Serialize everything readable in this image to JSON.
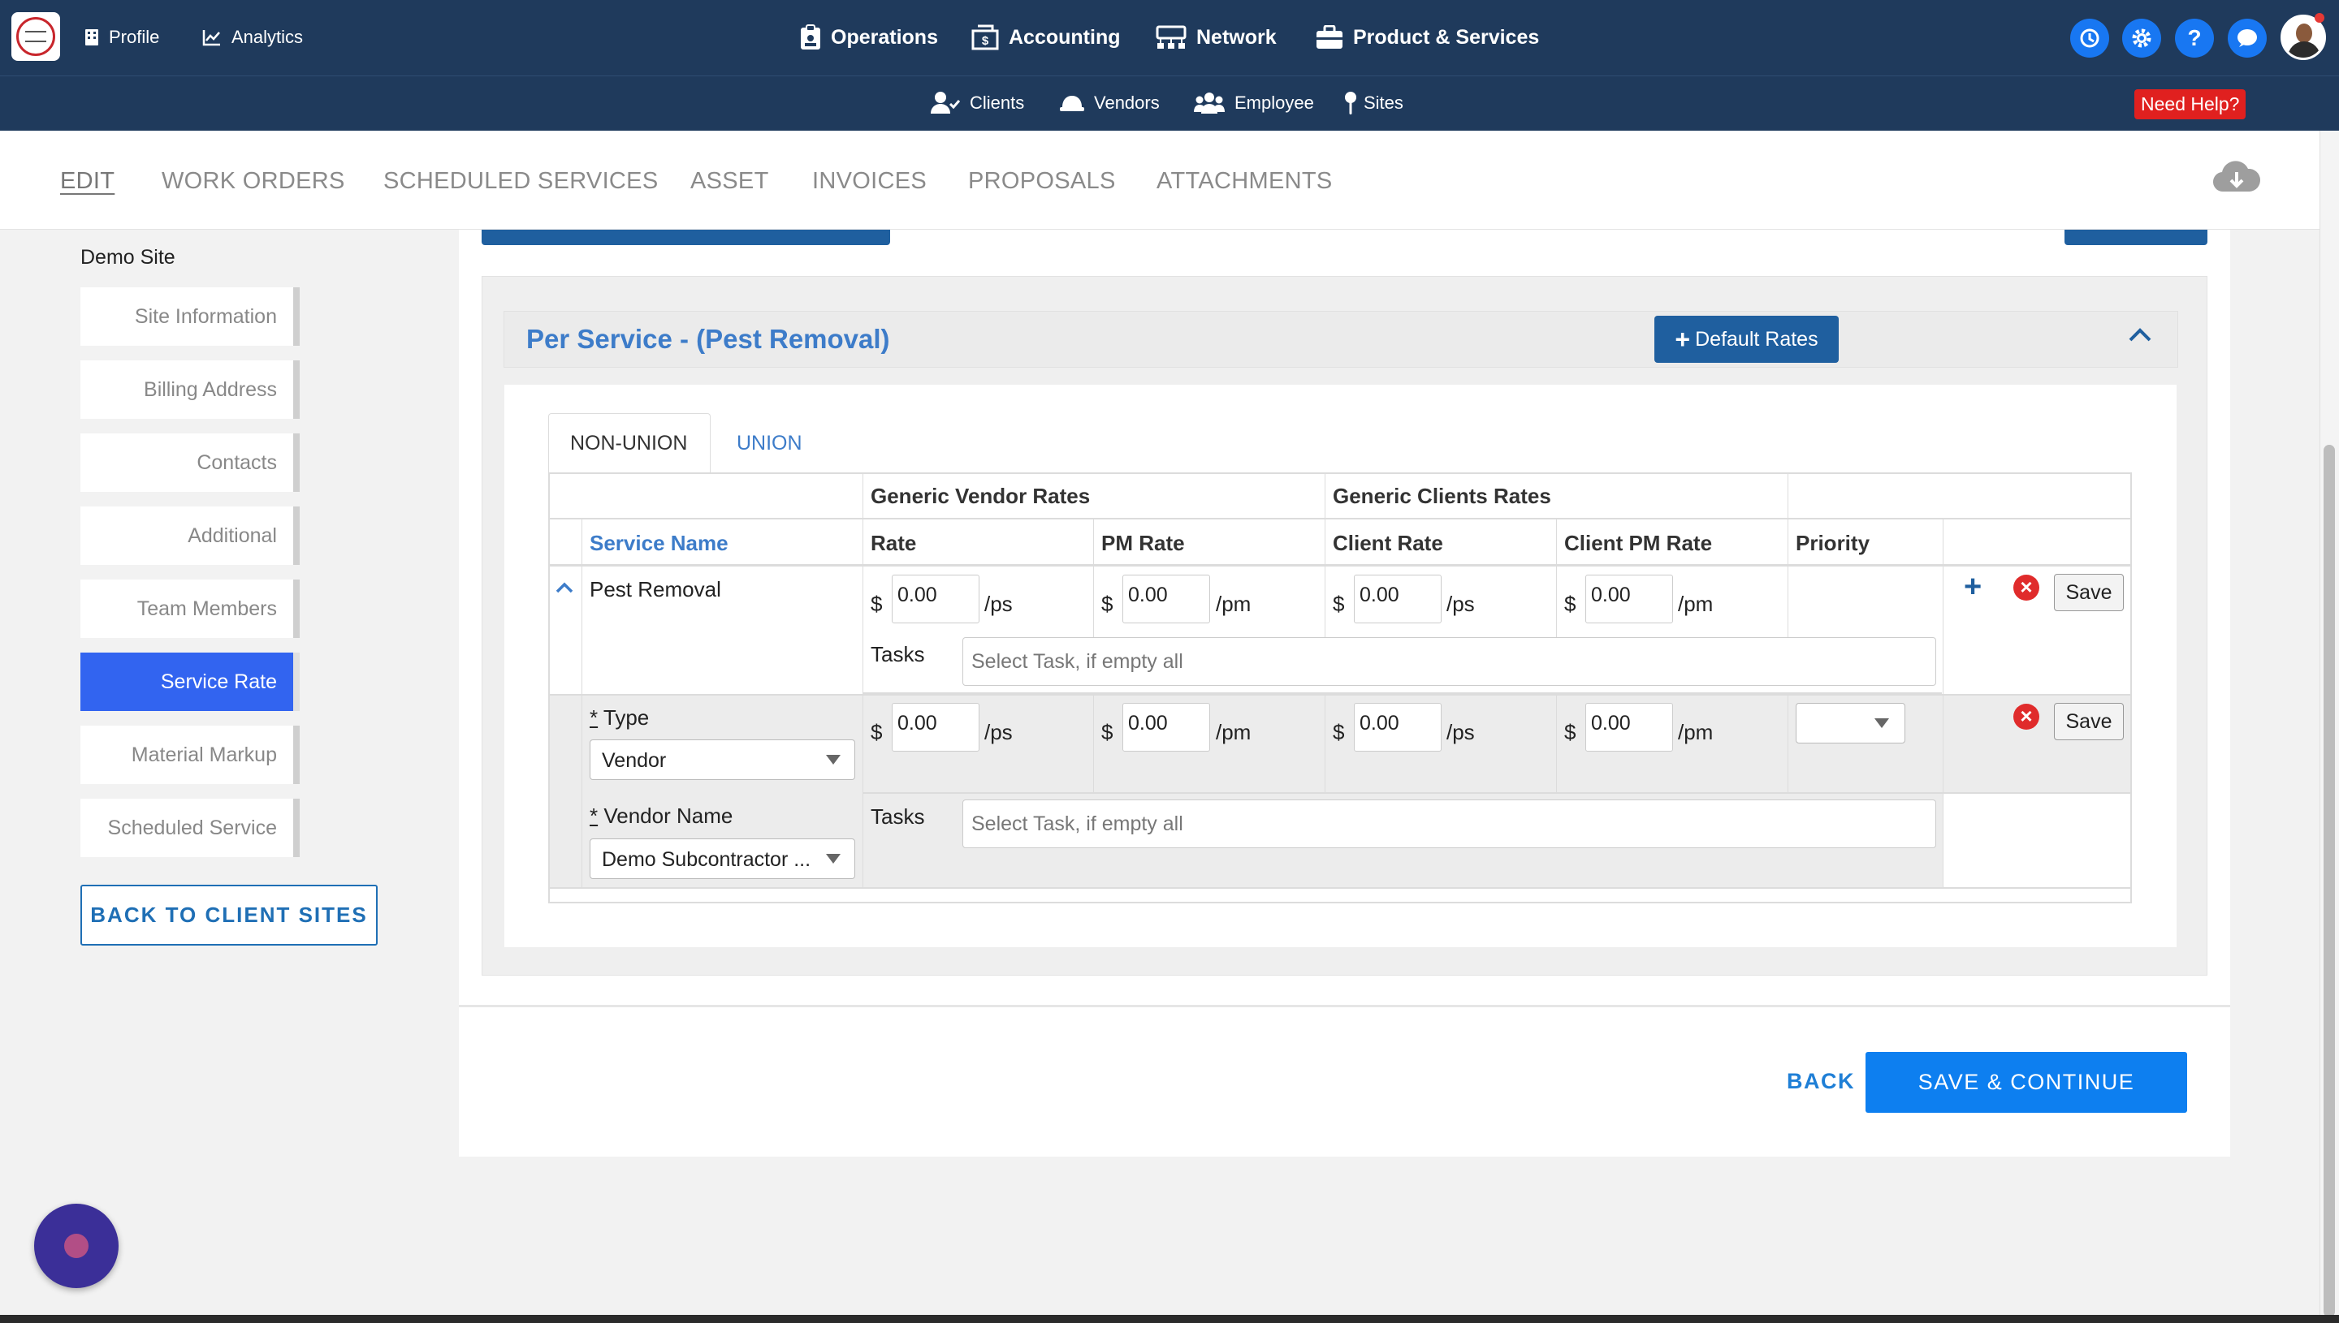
{
  "topnav": {
    "left": [
      {
        "label": "Profile",
        "icon": "building-icon"
      },
      {
        "label": "Analytics",
        "icon": "chart-line-icon"
      }
    ],
    "center": [
      {
        "label": "Operations",
        "icon": "clipboard-icon"
      },
      {
        "label": "Accounting",
        "icon": "money-icon"
      },
      {
        "label": "Network",
        "icon": "network-icon"
      },
      {
        "label": "Product & Services",
        "icon": "briefcase-icon"
      }
    ],
    "right_icons": [
      "sync-icon",
      "gear-icon",
      "help-icon",
      "chat-icon",
      "user-avatar"
    ]
  },
  "subnav": {
    "items": [
      {
        "label": "Clients",
        "icon": "user-check-icon"
      },
      {
        "label": "Vendors",
        "icon": "hard-hat-icon"
      },
      {
        "label": "Employee",
        "icon": "users-icon"
      },
      {
        "label": "Sites",
        "icon": "pin-icon"
      }
    ],
    "help": "Need Help?"
  },
  "tabs": [
    "EDIT",
    "WORK ORDERS",
    "SCHEDULED SERVICES",
    "ASSET",
    "INVOICES",
    "PROPOSALS",
    "ATTACHMENTS"
  ],
  "active_tab": "EDIT",
  "sidebar": {
    "site_name": "Demo Site",
    "items": [
      "Site Information",
      "Billing Address",
      "Contacts",
      "Additional",
      "Team Members",
      "Service Rate",
      "Material Markup",
      "Scheduled Service"
    ],
    "active": "Service Rate",
    "back_button": "BACK TO CLIENT SITES"
  },
  "rates": {
    "title": "Per Service - (Pest Removal)",
    "default_rates_button": "Default Rates",
    "subtabs": [
      "NON-UNION",
      "UNION"
    ],
    "active_subtab": "NON-UNION",
    "group_headers": {
      "vendor": "Generic Vendor Rates",
      "client": "Generic Clients Rates"
    },
    "columns": {
      "service_name": "Service Name",
      "rate": "Rate",
      "pm_rate": "PM Rate",
      "client_rate": "Client Rate",
      "client_pm_rate": "Client PM Rate",
      "priority": "Priority"
    },
    "row1": {
      "service_name": "Pest Removal",
      "currency": "$",
      "rate": "0.00",
      "rate_unit": "/ps",
      "pm_rate": "0.00",
      "pm_unit": "/pm",
      "client_rate": "0.00",
      "client_rate_unit": "/ps",
      "client_pm_rate": "0.00",
      "client_pm_unit": "/pm",
      "tasks_label": "Tasks",
      "tasks_placeholder": "Select Task, if empty all",
      "save": "Save"
    },
    "row2": {
      "type_label": "Type",
      "type_value": "Vendor",
      "vendor_label": "Vendor Name",
      "vendor_value": "Demo Subcontractor ...",
      "currency": "$",
      "rate": "0.00",
      "rate_unit": "/ps",
      "pm_rate": "0.00",
      "pm_unit": "/pm",
      "client_rate": "0.00",
      "client_rate_unit": "/ps",
      "client_pm_rate": "0.00",
      "client_pm_unit": "/pm",
      "priority_value": "",
      "tasks_label": "Tasks",
      "tasks_placeholder": "Select Task, if empty all",
      "save": "Save"
    },
    "required_mark": "*"
  },
  "footer": {
    "back": "BACK",
    "save_continue": "SAVE & CONTINUE"
  },
  "colors": {
    "navbar": "#1f3a5c",
    "accent_blue": "#1f5f9f",
    "active_sidebar": "#3264f0",
    "primary_button": "#0d7ff0",
    "help_red": "#e0201f",
    "link_blue": "#3d7cc9"
  }
}
